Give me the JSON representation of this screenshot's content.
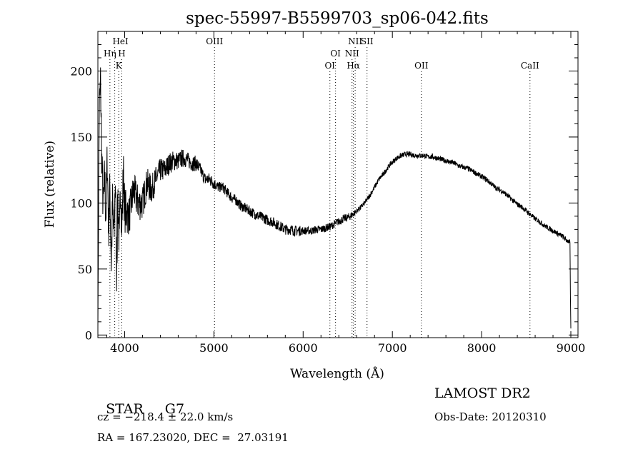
{
  "chart_data": {
    "type": "line",
    "title": "spec-55997-B5599703_sp06-042.fits",
    "xlabel": "Wavelength (Å)",
    "ylabel": "Flux (relative)",
    "xlim": [
      3700,
      9080
    ],
    "ylim": [
      -2,
      230
    ],
    "xticks": [
      4000,
      5000,
      6000,
      7000,
      8000,
      9000
    ],
    "yticks": [
      0,
      50,
      100,
      150,
      200
    ],
    "series": [
      {
        "name": "spectrum",
        "x": [
          3700,
          3715,
          3730,
          3745,
          3760,
          3775,
          3790,
          3805,
          3820,
          3835,
          3850,
          3865,
          3880,
          3895,
          3910,
          3925,
          3940,
          3955,
          3970,
          3985,
          4000,
          4050,
          4100,
          4150,
          4200,
          4250,
          4300,
          4350,
          4400,
          4450,
          4500,
          4550,
          4600,
          4650,
          4700,
          4750,
          4800,
          4850,
          4900,
          4950,
          5000,
          5050,
          5100,
          5150,
          5200,
          5250,
          5300,
          5350,
          5400,
          5450,
          5500,
          5550,
          5600,
          5650,
          5700,
          5750,
          5800,
          5850,
          5900,
          5950,
          6000,
          6050,
          6100,
          6150,
          6200,
          6250,
          6300,
          6350,
          6400,
          6450,
          6500,
          6550,
          6600,
          6650,
          6700,
          6750,
          6800,
          6850,
          6900,
          6950,
          7000,
          7050,
          7100,
          7150,
          7200,
          7250,
          7300,
          7350,
          7400,
          7450,
          7500,
          7550,
          7600,
          7650,
          7700,
          7750,
          7800,
          7850,
          7900,
          7950,
          8000,
          8050,
          8100,
          8150,
          8200,
          8250,
          8300,
          8350,
          8400,
          8450,
          8500,
          8550,
          8600,
          8650,
          8700,
          8750,
          8800,
          8850,
          8900,
          8950,
          8990,
          8995,
          9000
        ],
        "y": [
          5,
          170,
          190,
          130,
          95,
          120,
          90,
          135,
          80,
          110,
          55,
          100,
          70,
          120,
          50,
          105,
          65,
          115,
          80,
          125,
          95,
          90,
          110,
          100,
          100,
          115,
          110,
          118,
          125,
          125,
          130,
          132,
          132,
          134,
          133,
          130,
          130,
          125,
          118,
          118,
          115,
          112,
          112,
          108,
          104,
          102,
          98,
          96,
          94,
          92,
          90,
          89,
          87,
          86,
          84,
          82,
          80,
          80,
          79,
          79,
          79,
          79,
          79,
          80,
          80,
          81,
          82,
          84,
          86,
          88,
          89,
          91,
          94,
          97,
          101,
          106,
          112,
          118,
          122,
          127,
          131,
          134,
          136,
          137,
          137,
          136,
          136,
          136,
          135,
          135,
          134,
          133,
          132,
          131,
          130,
          128,
          127,
          126,
          124,
          122,
          120,
          118,
          115,
          112,
          110,
          108,
          105,
          102,
          99,
          97,
          94,
          91,
          88,
          86,
          83,
          81,
          79,
          77,
          75,
          72,
          70,
          30,
          5
        ],
        "noise_amp": [
          0,
          20,
          20,
          20,
          20,
          20,
          20,
          20,
          20,
          20,
          20,
          20,
          20,
          20,
          20,
          20,
          20,
          20,
          20,
          20,
          18,
          15,
          14,
          14,
          13,
          12,
          11,
          10,
          9,
          9,
          8,
          8,
          7,
          7,
          6,
          6,
          6,
          5,
          5,
          5,
          5,
          4,
          4,
          4,
          4,
          4,
          4,
          4,
          4,
          4,
          4,
          4,
          4,
          4,
          4,
          4,
          4,
          4,
          4,
          4,
          3,
          3,
          3,
          3,
          3,
          3,
          3,
          3,
          3,
          3,
          3,
          3,
          2,
          2,
          2,
          2,
          2,
          2,
          2,
          2,
          2,
          2,
          2,
          2,
          2,
          2,
          2,
          2,
          2,
          2,
          2,
          2,
          2,
          2,
          2,
          2,
          2,
          2,
          2,
          2,
          2,
          2,
          2,
          2,
          2,
          2,
          2,
          2,
          2,
          2,
          2,
          2,
          2,
          2,
          2,
          2,
          2,
          2,
          2,
          2,
          2,
          0,
          0
        ]
      }
    ],
    "lines": [
      {
        "label": "HeI",
        "x": 3889,
        "row": 1,
        "offset": 8
      },
      {
        "label": "Hη",
        "x": 3835,
        "row": 2,
        "offset": 0
      },
      {
        "label": "H",
        "x": 3968,
        "row": 2,
        "offset": 0
      },
      {
        "label": "K",
        "x": 3934,
        "row": 3,
        "offset": 0
      },
      {
        "label": "OIII",
        "x": 5007,
        "row": 1,
        "offset": 0
      },
      {
        "label": "OI",
        "x": 6363,
        "row": 2,
        "offset": 0
      },
      {
        "label": "OI",
        "x": 6300,
        "row": 3,
        "offset": 0
      },
      {
        "label": "NII",
        "x": 6583,
        "row": 1,
        "offset": 0
      },
      {
        "label": "SII",
        "x": 6716,
        "row": 1,
        "offset": 0
      },
      {
        "label": "NII",
        "x": 6548,
        "row": 2,
        "offset": 0
      },
      {
        "label": "Hα",
        "x": 6563,
        "row": 3,
        "offset": 0
      },
      {
        "label": "OII",
        "x": 7325,
        "row": 3,
        "offset": 0
      },
      {
        "label": "CaII",
        "x": 8542,
        "row": 3,
        "offset": 0
      }
    ]
  },
  "info": {
    "class_label": "STAR",
    "subclass": "G7",
    "survey": "LAMOST DR2",
    "cz_text": "cz = −218.4 ± 22.0 km/s",
    "obs_date_text": "Obs-Date: 20120310",
    "radec_text": "RA = 167.23020, DEC =  27.03191"
  }
}
